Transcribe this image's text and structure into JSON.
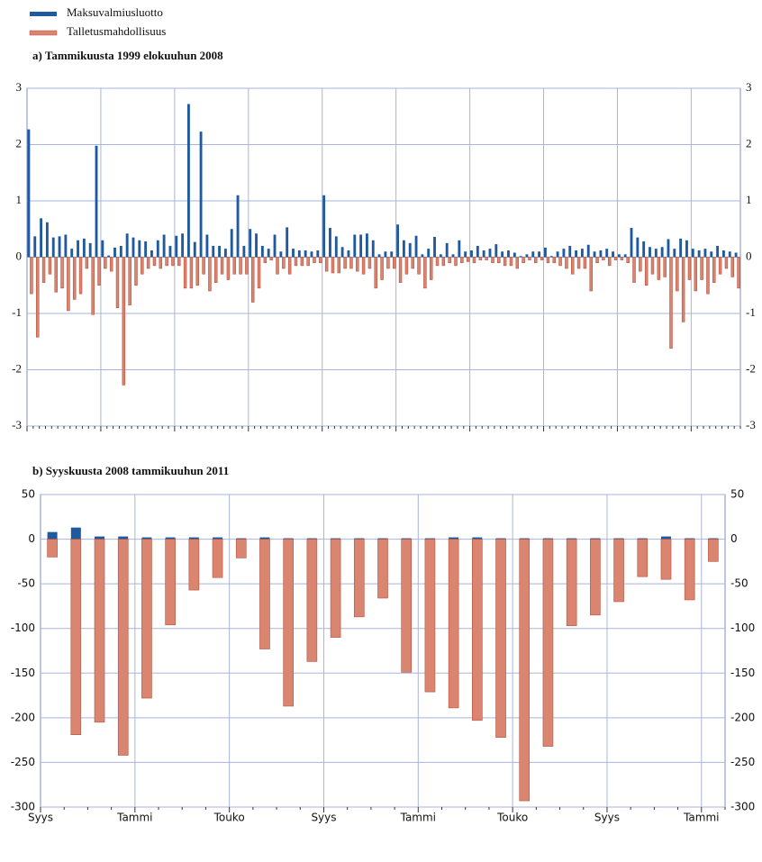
{
  "chart_data": [
    {
      "type": "bar",
      "title": "a) Tammikuusta 1999 elokuuhun 2008",
      "series": [
        {
          "name": "Maksuvalmiusluotto",
          "color": "#1f5aa0",
          "values": [
            2.27,
            0.37,
            0.69,
            0.62,
            0.35,
            0.37,
            0.4,
            0.15,
            0.3,
            0.33,
            0.25,
            1.98,
            0.3,
            0.03,
            0.17,
            0.2,
            0.42,
            0.35,
            0.3,
            0.28,
            0.12,
            0.3,
            0.4,
            0.2,
            0.38,
            0.42,
            2.72,
            0.27,
            2.23,
            0.4,
            0.2,
            0.2,
            0.15,
            0.5,
            1.1,
            0.2,
            0.5,
            0.42,
            0.2,
            0.15,
            0.4,
            0.1,
            0.53,
            0.15,
            0.12,
            0.12,
            0.1,
            0.12,
            1.1,
            0.52,
            0.37,
            0.18,
            0.12,
            0.4,
            0.4,
            0.42,
            0.3,
            0.05,
            0.1,
            0.1,
            0.58,
            0.3,
            0.25,
            0.38,
            0.05,
            0.15,
            0.36,
            0.05,
            0.25,
            0.05,
            0.3,
            0.1,
            0.12,
            0.2,
            0.12,
            0.15,
            0.23,
            0.1,
            0.12,
            0.08,
            0.02,
            0.05,
            0.1,
            0.1,
            0.17,
            0.02,
            0.1,
            0.15,
            0.2,
            0.12,
            0.15,
            0.22,
            0.1,
            0.12,
            0.15,
            0.1,
            0.05,
            0.05,
            0.52,
            0.35,
            0.28,
            0.18,
            0.15,
            0.18,
            0.32,
            0.15,
            0.33,
            0.3,
            0.15,
            0.12,
            0.15,
            0.1,
            0.2,
            0.12,
            0.1,
            0.08
          ]
        },
        {
          "name": "Talletusmahdollisuus",
          "color": "#d98570",
          "values": [
            -0.65,
            -1.42,
            -0.45,
            -0.3,
            -0.62,
            -0.55,
            -0.95,
            -0.75,
            -0.65,
            -0.2,
            -1.02,
            -0.5,
            -0.2,
            -0.25,
            -0.9,
            -2.27,
            -0.85,
            -0.5,
            -0.3,
            -0.2,
            -0.15,
            -0.2,
            -0.15,
            -0.15,
            -0.15,
            -0.55,
            -0.55,
            -0.5,
            -0.3,
            -0.6,
            -0.45,
            -0.3,
            -0.4,
            -0.3,
            -0.3,
            -0.3,
            -0.8,
            -0.55,
            -0.1,
            -0.05,
            -0.3,
            -0.2,
            -0.3,
            -0.15,
            -0.15,
            -0.15,
            -0.1,
            -0.1,
            -0.25,
            -0.28,
            -0.28,
            -0.2,
            -0.2,
            -0.25,
            -0.3,
            -0.2,
            -0.55,
            -0.4,
            -0.2,
            -0.2,
            -0.45,
            -0.3,
            -0.2,
            -0.3,
            -0.55,
            -0.4,
            -0.15,
            -0.15,
            -0.1,
            -0.15,
            -0.1,
            -0.08,
            -0.1,
            -0.05,
            -0.05,
            -0.1,
            -0.1,
            -0.15,
            -0.15,
            -0.2,
            -0.1,
            -0.05,
            -0.1,
            -0.05,
            -0.1,
            -0.1,
            -0.15,
            -0.2,
            -0.3,
            -0.2,
            -0.2,
            -0.6,
            -0.1,
            -0.05,
            -0.15,
            -0.05,
            -0.05,
            -0.1,
            -0.45,
            -0.25,
            -0.5,
            -0.3,
            -0.4,
            -0.35,
            -1.62,
            -0.6,
            -1.15,
            -0.4,
            -0.6,
            -0.4,
            -0.65,
            -0.45,
            -0.3,
            -0.2,
            -0.35,
            -0.55
          ]
        }
      ],
      "ylim": [
        -3,
        3
      ],
      "yticks": [
        3,
        2,
        1,
        0,
        -1,
        -2,
        -3
      ],
      "grid": true
    },
    {
      "type": "bar",
      "title": "b) Syyskuusta 2008 tammikuuhun 2011",
      "categories": [
        "Syys",
        null,
        null,
        null,
        "Tammi",
        null,
        null,
        null,
        "Touko",
        null,
        null,
        null,
        "Syys",
        null,
        null,
        null,
        "Tammi",
        null,
        null,
        null,
        "Touko",
        null,
        null,
        null,
        "Syys",
        null,
        null,
        null,
        "Tammi"
      ],
      "series": [
        {
          "color": "#1f5aa0",
          "values": [
            8,
            13,
            3,
            3,
            2,
            2,
            2,
            2,
            1,
            2,
            1,
            1,
            1,
            1,
            1,
            1,
            1,
            2,
            2,
            1,
            1,
            1,
            1,
            1,
            1,
            1,
            3,
            1,
            1
          ]
        },
        {
          "color": "#d98570",
          "values": [
            -20,
            -219,
            -205,
            -242,
            -178,
            -96,
            -57,
            -43,
            -21,
            -123,
            -187,
            -137,
            -110,
            -87,
            -66,
            -149,
            -171,
            -189,
            -203,
            -222,
            -293,
            -232,
            -97,
            -85,
            -70,
            -42,
            -45,
            -68,
            -25
          ]
        }
      ],
      "ylim": [
        -300,
        50
      ],
      "yticks": [
        50,
        0,
        -50,
        -100,
        -150,
        -200,
        -250,
        -300
      ],
      "grid": true
    }
  ]
}
